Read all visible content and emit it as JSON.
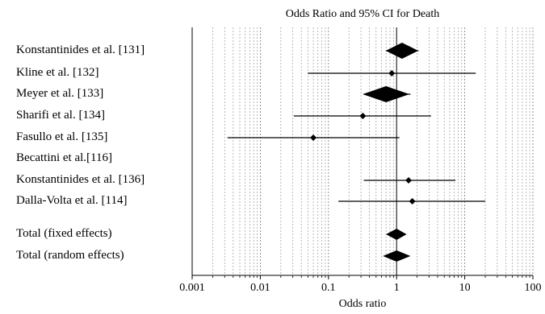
{
  "chart_data": {
    "type": "forest",
    "title": "Odds Ratio and 95% CI for Death",
    "xlabel": "Odds ratio",
    "xscale": "log",
    "xlim": [
      0.001,
      100
    ],
    "xticks": [
      0.001,
      0.01,
      0.1,
      1,
      10,
      100
    ],
    "xtick_labels": [
      "0.001",
      "0.01",
      "0.1",
      "1",
      "10",
      "100"
    ],
    "reference_line": 1,
    "studies": [
      {
        "label": "Konstantinides et al. [131]",
        "or": 1.2,
        "lo": 0.7,
        "hi": 2.1,
        "marker": "diamond"
      },
      {
        "label": "Kline et al. [132]",
        "or": 0.85,
        "lo": 0.05,
        "hi": 14.5,
        "marker": "point"
      },
      {
        "label": "Meyer et al. [133]",
        "or": 0.7,
        "lo": 0.33,
        "hi": 1.6,
        "marker": "diamond"
      },
      {
        "label": "Sharifi et al. [134]",
        "or": 0.32,
        "lo": 0.031,
        "hi": 3.2,
        "marker": "point"
      },
      {
        "label": "Fasullo et al. [135]",
        "or": 0.06,
        "lo": 0.0033,
        "hi": 1.1,
        "marker": "point"
      },
      {
        "label": "Becattini et al.[116]",
        "or": null,
        "lo": null,
        "hi": null,
        "marker": "none"
      },
      {
        "label": "Konstantinides et al. [136]",
        "or": 1.5,
        "lo": 0.33,
        "hi": 7.3,
        "marker": "point"
      },
      {
        "label": "Dalla-Volta et al. [114]",
        "or": 1.7,
        "lo": 0.14,
        "hi": 20,
        "marker": "point"
      }
    ],
    "totals": [
      {
        "label": "Total (fixed effects)",
        "or": 1.0,
        "lo": 0.7,
        "hi": 1.4
      },
      {
        "label": "Total (random effects)",
        "or": 1.0,
        "lo": 0.63,
        "hi": 1.6
      }
    ]
  }
}
